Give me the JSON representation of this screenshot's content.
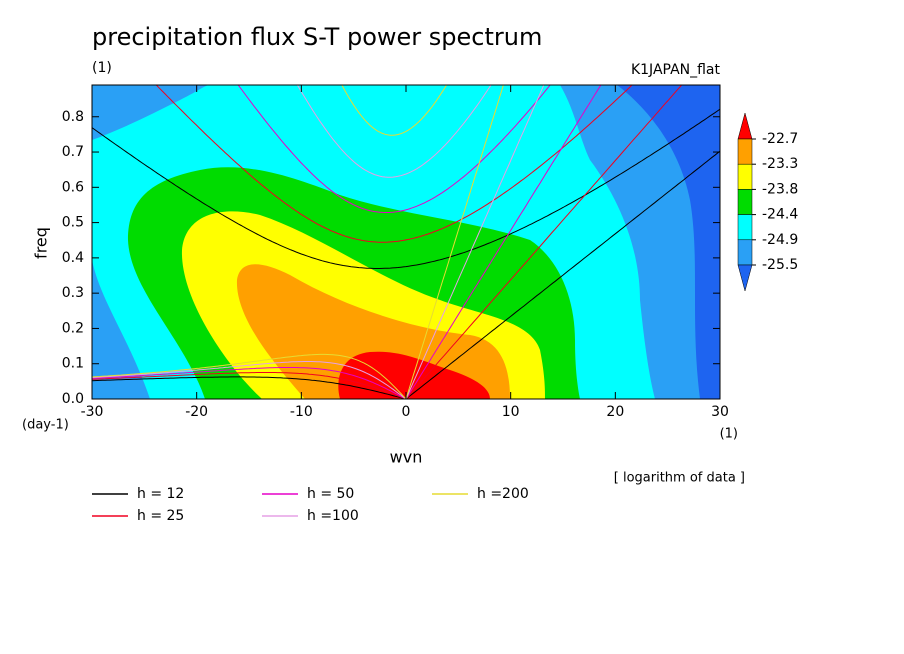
{
  "chart_data": {
    "type": "spectrum",
    "title": "precipitation flux S-T power spectrum",
    "subtitle": "(1)",
    "dataset": "K1JAPAN_flat",
    "xlabel": "wvn",
    "ylabel": "freq",
    "xunit": "(1)",
    "yunit": "(day-1)",
    "note": "[ logarithm of data ]",
    "xlim": [
      -30,
      30
    ],
    "xticks": [
      -30,
      -20,
      -10,
      0,
      10,
      20,
      30
    ],
    "ylim": [
      0,
      0.89
    ],
    "yticks": [
      {
        "value": 0,
        "label": "0.0"
      },
      {
        "value": 0.1,
        "label": "0.1"
      },
      {
        "value": 0.2,
        "label": "0.2"
      },
      {
        "value": 0.3,
        "label": "0.3"
      },
      {
        "value": 0.4,
        "label": "0.4"
      },
      {
        "value": 0.5,
        "label": "0.5"
      },
      {
        "value": 0.6,
        "label": "0.6"
      },
      {
        "value": 0.7,
        "label": "0.7"
      },
      {
        "value": 0.8,
        "label": "0.8"
      }
    ],
    "colorbar": {
      "levels": [
        -22.7,
        -23.3,
        -23.8,
        -24.4,
        -24.9,
        -25.5
      ],
      "colors": [
        "#ff0000",
        "#ffa000",
        "#ffff00",
        "#00dc00",
        "#00ffff",
        "#2aa0f5",
        "#1e64f0"
      ]
    },
    "series": [
      {
        "name": "h = 12",
        "color": "#000000",
        "h": 12
      },
      {
        "name": "h = 25",
        "color": "#f00020",
        "h": 25
      },
      {
        "name": "h = 50",
        "color": "#e600c8",
        "h": 50
      },
      {
        "name": "h =100",
        "color": "#e6a0e6",
        "h": 100
      },
      {
        "name": "h =200",
        "color": "#e6dc32",
        "h": 200
      }
    ]
  }
}
